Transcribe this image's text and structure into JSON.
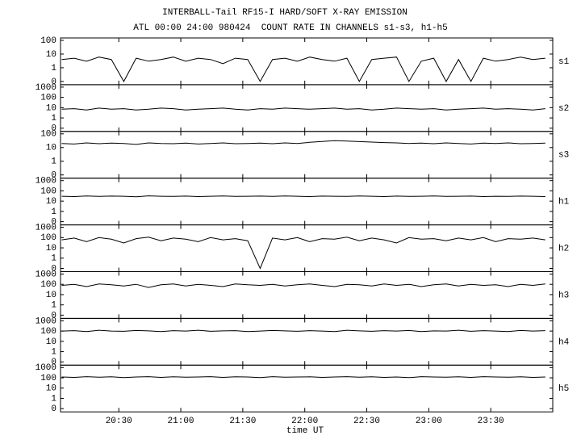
{
  "chart_data": {
    "type": "line",
    "title": "INTERBALL-Tail RF15-I HARD/SOFT X-RAY EMISSION",
    "subtitle": "ATL 00:00 24:00 980424  COUNT RATE IN CHANNELS s1-s3, h1-h5",
    "x_label": "time UT",
    "log_scale": true,
    "xlim": [
      20.03,
      24.0
    ],
    "xticks": [
      {
        "value": 20.5,
        "label": "20:30"
      },
      {
        "value": 21,
        "label": "21:00"
      },
      {
        "value": 21.5,
        "label": "21:30"
      },
      {
        "value": 22,
        "label": "22:00"
      },
      {
        "value": 22.5,
        "label": "22:30"
      },
      {
        "value": 23,
        "label": "23:00"
      },
      {
        "value": 23.5,
        "label": "23:30"
      }
    ],
    "x": [
      20.04,
      20.14,
      20.24,
      20.34,
      20.44,
      20.54,
      20.64,
      20.74,
      20.84,
      20.94,
      21.04,
      21.14,
      21.24,
      21.34,
      21.44,
      21.54,
      21.64,
      21.74,
      21.84,
      21.94,
      22.04,
      22.14,
      22.24,
      22.34,
      22.44,
      22.54,
      22.64,
      22.74,
      22.84,
      22.94,
      23.04,
      23.14,
      23.24,
      23.34,
      23.44,
      23.54,
      23.64,
      23.74,
      23.84,
      23.94
    ],
    "series": [
      {
        "name": "s1",
        "color": "#000000",
        "ylim": [
          0.1,
          100
        ],
        "yticks": [
          100,
          10,
          1,
          {
            "value": 0.1,
            "label": "0"
          }
        ],
        "values": [
          4,
          5,
          3,
          6,
          4,
          0.1,
          5,
          3,
          4,
          6,
          3,
          5,
          4,
          2,
          5,
          4,
          0.1,
          4,
          5,
          3,
          6,
          4,
          3,
          5,
          0.1,
          4,
          5,
          6,
          0.1,
          3,
          5,
          0.1,
          4,
          0.1,
          5,
          3,
          4,
          6,
          4,
          5
        ]
      },
      {
        "name": "s2",
        "color": "#000000",
        "ylim": [
          0.1,
          1000
        ],
        "yticks": [
          1000,
          100,
          10,
          1,
          {
            "value": 0.1,
            "label": "0"
          }
        ],
        "values": [
          7,
          8,
          6,
          9,
          7,
          8,
          6,
          7,
          9,
          8,
          6,
          7,
          8,
          9,
          7,
          6,
          8,
          7,
          9,
          8,
          7,
          8,
          9,
          7,
          8,
          6,
          7,
          9,
          8,
          7,
          8,
          6,
          7,
          8,
          9,
          7,
          8,
          7,
          6,
          8
        ]
      },
      {
        "name": "s3",
        "color": "#000000",
        "ylim": [
          0.1,
          100
        ],
        "yticks": [
          100,
          10,
          1,
          {
            "value": 0.1,
            "label": "0"
          }
        ],
        "values": [
          20,
          18,
          22,
          19,
          21,
          20,
          17,
          22,
          20,
          19,
          21,
          18,
          20,
          22,
          19,
          20,
          21,
          19,
          22,
          20,
          24,
          28,
          32,
          30,
          27,
          25,
          23,
          22,
          20,
          21,
          19,
          22,
          20,
          18,
          21,
          20,
          22,
          19,
          20,
          21
        ]
      },
      {
        "name": "h1",
        "color": "#000000",
        "ylim": [
          0.1,
          1000
        ],
        "yticks": [
          1000,
          100,
          10,
          1,
          {
            "value": 0.1,
            "label": "0"
          }
        ],
        "values": [
          30,
          28,
          32,
          29,
          31,
          30,
          27,
          33,
          30,
          29,
          31,
          28,
          30,
          32,
          29,
          30,
          31,
          29,
          32,
          30,
          28,
          31,
          30,
          29,
          32,
          30,
          28,
          31,
          29,
          30,
          32,
          29,
          30,
          31,
          28,
          30,
          29,
          31,
          30,
          28
        ]
      },
      {
        "name": "h2",
        "color": "#000000",
        "ylim": [
          0.1,
          1000
        ],
        "yticks": [
          1000,
          100,
          10,
          1,
          {
            "value": 0.1,
            "label": "0"
          }
        ],
        "values": [
          60,
          90,
          40,
          100,
          70,
          30,
          80,
          110,
          50,
          90,
          70,
          40,
          100,
          60,
          80,
          50,
          0.1,
          90,
          60,
          100,
          40,
          80,
          70,
          110,
          50,
          90,
          60,
          30,
          100,
          70,
          80,
          50,
          90,
          60,
          100,
          40,
          80,
          70,
          90,
          60
        ]
      },
      {
        "name": "h3",
        "color": "#000000",
        "ylim": [
          0.1,
          1000
        ],
        "yticks": [
          1000,
          100,
          10,
          1,
          {
            "value": 0.1,
            "label": "0"
          }
        ],
        "values": [
          80,
          100,
          60,
          110,
          90,
          70,
          100,
          50,
          90,
          110,
          70,
          100,
          80,
          60,
          110,
          90,
          80,
          100,
          70,
          90,
          110,
          80,
          60,
          100,
          90,
          70,
          110,
          80,
          100,
          60,
          90,
          110,
          70,
          100,
          80,
          90,
          60,
          100,
          80,
          110
        ]
      },
      {
        "name": "h4",
        "color": "#000000",
        "ylim": [
          0.1,
          1000
        ],
        "yticks": [
          1000,
          100,
          10,
          1,
          {
            "value": 0.1,
            "label": "0"
          }
        ],
        "values": [
          100,
          110,
          90,
          120,
          100,
          95,
          115,
          105,
          90,
          110,
          100,
          120,
          95,
          105,
          110,
          90,
          100,
          115,
          105,
          95,
          110,
          100,
          90,
          120,
          105,
          95,
          110,
          100,
          115,
          90,
          105,
          100,
          120,
          95,
          110,
          100,
          90,
          115,
          100,
          110
        ]
      },
      {
        "name": "h5",
        "color": "#000000",
        "ylim": [
          0.1,
          1000
        ],
        "yticks": [
          1000,
          100,
          10,
          1,
          {
            "value": 0.1,
            "label": "0"
          }
        ],
        "values": [
          120,
          110,
          130,
          115,
          125,
          105,
          120,
          130,
          110,
          125,
          115,
          120,
          130,
          110,
          125,
          120,
          105,
          130,
          115,
          120,
          125,
          110,
          120,
          130,
          115,
          125,
          110,
          120,
          105,
          130,
          120,
          115,
          125,
          110,
          130,
          120,
          115,
          125,
          110,
          120
        ]
      }
    ]
  }
}
